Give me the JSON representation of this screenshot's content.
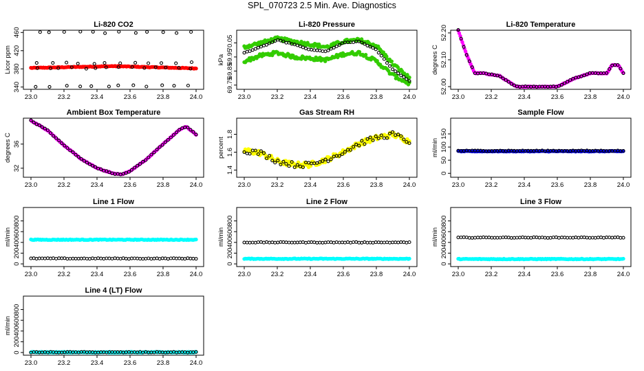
{
  "figure_title": "SPL_070723  2.5 Min. Ave. Diagnostics",
  "chart_data": [
    {
      "type": "scatter",
      "title": "Li-820 CO2",
      "ylabel": "Licor ppm",
      "xlabel": "",
      "xlim": [
        23.0,
        24.0
      ],
      "ylim": [
        335,
        465
      ],
      "xticks": [
        "23.0",
        "23.2",
        "23.4",
        "23.6",
        "23.8",
        "24.0"
      ],
      "yticks": [
        340,
        380,
        420,
        460
      ],
      "grid": false,
      "series": [
        {
          "color": "#ff0000",
          "marker": "filled",
          "x_start": 23.0,
          "x_end": 24.0,
          "y_start": 382,
          "y_peak": 386,
          "y_end": 381
        },
        {
          "color": "#000000",
          "marker": "open",
          "rows_y": [
            342,
            393,
            382,
            460
          ]
        }
      ]
    },
    {
      "type": "scatter",
      "title": "Li-820 Pressure",
      "ylabel": "kPa",
      "xlabel": "",
      "xlim": [
        23.0,
        24.0
      ],
      "ylim": [
        69.72,
        70.14
      ],
      "xticks": [
        "23.0",
        "23.2",
        "23.4",
        "23.6",
        "23.8",
        "24.0"
      ],
      "yticks": [
        "69.75",
        "69.85",
        "69.95",
        "70.05"
      ],
      "grid": false,
      "series": [
        {
          "color": "#33cc00",
          "marker": "filled",
          "x": [
            23.0,
            23.1,
            23.2,
            23.3,
            23.4,
            23.5,
            23.6,
            23.7,
            23.8,
            23.9,
            24.0
          ],
          "y_upper": [
            70.02,
            70.05,
            70.08,
            70.06,
            70.04,
            70.02,
            70.06,
            70.07,
            70.03,
            69.9,
            69.8
          ],
          "y_lower": [
            69.92,
            69.96,
            69.98,
            69.95,
            69.94,
            69.93,
            69.97,
            69.98,
            69.92,
            69.82,
            69.76
          ]
        },
        {
          "color": "#000000",
          "marker": "open",
          "x": [
            23.0,
            23.1,
            23.2,
            23.3,
            23.4,
            23.5,
            23.6,
            23.7,
            23.8,
            23.9,
            24.0
          ],
          "y": [
            69.98,
            70.02,
            70.07,
            70.04,
            70.0,
            69.99,
            70.05,
            70.06,
            70.0,
            69.86,
            69.78
          ]
        }
      ]
    },
    {
      "type": "scatter",
      "title": "Li-820 Temperature",
      "ylabel": "degrees C",
      "xlabel": "",
      "xlim": [
        23.0,
        24.0
      ],
      "ylim": [
        51.99,
        52.21
      ],
      "xticks": [
        "23.0",
        "23.2",
        "23.4",
        "23.6",
        "23.8",
        "24.0"
      ],
      "yticks": [
        "52.00",
        "52.10",
        "52.20"
      ],
      "grid": false,
      "series": [
        {
          "color": "#ff00ff",
          "marker": "filled",
          "x": [
            23.0,
            23.05,
            23.1,
            23.15,
            23.25,
            23.35,
            23.45,
            23.6,
            23.7,
            23.8,
            23.9,
            23.93,
            23.97,
            24.0
          ],
          "y": [
            52.21,
            52.12,
            52.05,
            52.05,
            52.04,
            52.0,
            52.0,
            52.0,
            52.03,
            52.05,
            52.05,
            52.08,
            52.08,
            52.05
          ]
        },
        {
          "color": "#000000",
          "marker": "open",
          "x": [
            23.0,
            23.05,
            23.1,
            23.15,
            23.25,
            23.35,
            23.45,
            23.6,
            23.7,
            23.8,
            23.9,
            23.93,
            23.97,
            24.0
          ],
          "y": [
            52.21,
            52.12,
            52.05,
            52.05,
            52.04,
            52.0,
            52.0,
            52.0,
            52.03,
            52.05,
            52.05,
            52.08,
            52.08,
            52.05
          ]
        }
      ]
    },
    {
      "type": "scatter",
      "title": "Ambient Box Temperature",
      "ylabel": "degrees C",
      "xlabel": "",
      "xlim": [
        23.0,
        24.0
      ],
      "ylim": [
        30.5,
        40.3
      ],
      "xticks": [
        "23.0",
        "23.2",
        "23.4",
        "23.6",
        "23.8",
        "24.0"
      ],
      "yticks": [
        32,
        36
      ],
      "grid": false,
      "series": [
        {
          "color": "#ff00ff",
          "marker": "filled",
          "x": [
            23.0,
            23.1,
            23.2,
            23.3,
            23.4,
            23.5,
            23.55,
            23.6,
            23.7,
            23.8,
            23.9,
            23.94,
            24.0
          ],
          "y": [
            39.9,
            38.3,
            35.8,
            33.6,
            32.0,
            31.1,
            31.0,
            31.5,
            33.5,
            36.0,
            38.4,
            38.9,
            37.6
          ]
        },
        {
          "color": "#000000",
          "marker": "open",
          "x": [
            23.0,
            23.1,
            23.2,
            23.3,
            23.4,
            23.5,
            23.55,
            23.6,
            23.7,
            23.8,
            23.9,
            23.94,
            24.0
          ],
          "y": [
            39.9,
            38.3,
            35.8,
            33.6,
            32.0,
            31.1,
            31.0,
            31.5,
            33.5,
            36.0,
            38.4,
            38.9,
            37.6
          ]
        }
      ]
    },
    {
      "type": "scatter",
      "title": "Gas Stream RH",
      "ylabel": "percent",
      "xlabel": "",
      "xlim": [
        23.0,
        24.0
      ],
      "ylim": [
        1.32,
        1.98
      ],
      "xticks": [
        "23.0",
        "23.2",
        "23.4",
        "23.6",
        "23.8",
        "24.0"
      ],
      "yticks": [
        "1.4",
        "1.6",
        "1.8"
      ],
      "grid": false,
      "series": [
        {
          "color": "#ffff00",
          "marker": "filled",
          "x": [
            23.0,
            23.1,
            23.2,
            23.3,
            23.4,
            23.5,
            23.6,
            23.7,
            23.8,
            23.9,
            24.0
          ],
          "y": [
            1.62,
            1.59,
            1.5,
            1.46,
            1.46,
            1.52,
            1.6,
            1.7,
            1.76,
            1.8,
            1.72
          ]
        },
        {
          "color": "#000000",
          "marker": "open",
          "x": [
            23.0,
            23.1,
            23.2,
            23.3,
            23.4,
            23.5,
            23.6,
            23.7,
            23.8,
            23.9,
            24.0
          ],
          "y": [
            1.62,
            1.59,
            1.5,
            1.46,
            1.46,
            1.52,
            1.6,
            1.7,
            1.76,
            1.8,
            1.72
          ]
        }
      ]
    },
    {
      "type": "scatter",
      "title": "Sample Flow",
      "ylabel": "ml/min",
      "xlabel": "",
      "xlim": [
        23.0,
        24.0
      ],
      "ylim": [
        -15,
        210
      ],
      "xticks": [
        "23.0",
        "23.2",
        "23.4",
        "23.6",
        "23.8",
        "24.0"
      ],
      "yticks": [
        0,
        50,
        100,
        150
      ],
      "grid": false,
      "series": [
        {
          "color": "#0000dd",
          "marker": "filled",
          "x_start": 23.0,
          "x_end": 24.0,
          "y": 84
        },
        {
          "color": "#000000",
          "marker": "open",
          "x_start": 23.0,
          "x_end": 24.0,
          "y": 86
        }
      ]
    },
    {
      "type": "scatter",
      "title": "Line 1 Flow",
      "ylabel": "ml/min",
      "xlabel": "",
      "xlim": [
        23.0,
        24.0
      ],
      "ylim": [
        -50,
        1050
      ],
      "xticks": [
        "23.0",
        "23.2",
        "23.4",
        "23.6",
        "23.8",
        "24.0"
      ],
      "yticks": [
        0,
        200,
        400,
        600,
        800
      ],
      "grid": false,
      "series": [
        {
          "color": "#00ffff",
          "marker": "filled",
          "x_start": 23.0,
          "x_end": 24.0,
          "y": 450
        },
        {
          "color": "#000000",
          "marker": "open",
          "x_start": 23.0,
          "x_end": 24.0,
          "y": 100
        }
      ]
    },
    {
      "type": "scatter",
      "title": "Line 2 Flow",
      "ylabel": "ml/min",
      "xlabel": "",
      "xlim": [
        23.0,
        24.0
      ],
      "ylim": [
        -50,
        1050
      ],
      "xticks": [
        "23.0",
        "23.2",
        "23.4",
        "23.6",
        "23.8",
        "24.0"
      ],
      "yticks": [
        0,
        200,
        400,
        600,
        800
      ],
      "grid": false,
      "series": [
        {
          "color": "#00ffff",
          "marker": "filled",
          "x_start": 23.0,
          "x_end": 24.0,
          "y": 95
        },
        {
          "color": "#000000",
          "marker": "open",
          "x_start": 23.0,
          "x_end": 24.0,
          "y": 400
        }
      ]
    },
    {
      "type": "scatter",
      "title": "Line 3 Flow",
      "ylabel": "ml/min",
      "xlabel": "",
      "xlim": [
        23.0,
        24.0
      ],
      "ylim": [
        -50,
        1050
      ],
      "xticks": [
        "23.0",
        "23.2",
        "23.4",
        "23.6",
        "23.8",
        "24.0"
      ],
      "yticks": [
        0,
        200,
        400,
        600,
        800
      ],
      "grid": false,
      "series": [
        {
          "color": "#00ffff",
          "marker": "filled",
          "x_start": 23.0,
          "x_end": 24.0,
          "y": 90
        },
        {
          "color": "#000000",
          "marker": "open",
          "x_start": 23.0,
          "x_end": 24.0,
          "y": 490
        }
      ]
    },
    {
      "type": "scatter",
      "title": "Line 4 (LT) Flow",
      "ylabel": "ml/min",
      "xlabel": "",
      "xlim": [
        23.0,
        24.0
      ],
      "ylim": [
        -50,
        1050
      ],
      "xticks": [
        "23.0",
        "23.2",
        "23.4",
        "23.6",
        "23.8",
        "24.0"
      ],
      "yticks": [
        0,
        200,
        400,
        600,
        800
      ],
      "grid": false,
      "series": [
        {
          "color": "#00ffff",
          "marker": "filled",
          "x_start": 23.0,
          "x_end": 24.0,
          "y": 5
        },
        {
          "color": "#000000",
          "marker": "open",
          "x_start": 23.0,
          "x_end": 24.0,
          "y": 5
        }
      ]
    }
  ]
}
